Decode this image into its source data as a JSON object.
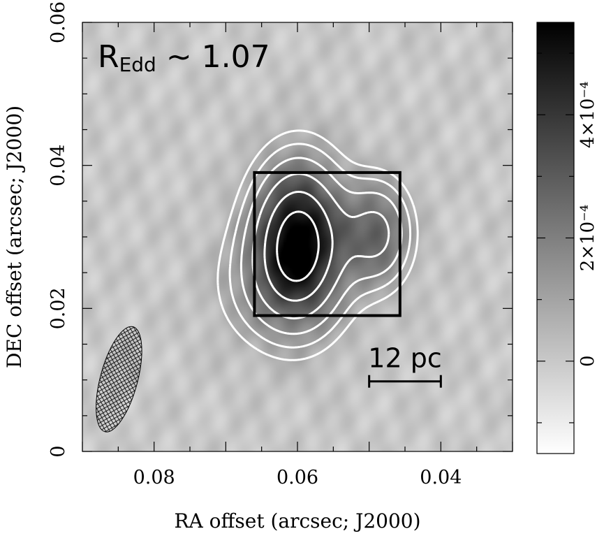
{
  "chart_data": {
    "type": "heatmap",
    "xlabel": "RA offset (arcsec; J2000)",
    "ylabel": "DEC offset (arcsec; J2000)",
    "xlim": [
      0.09,
      0.03
    ],
    "ylim": [
      0.0,
      0.06
    ],
    "x_inverted": true,
    "grid": false,
    "x_ticks": [
      {
        "value": 0.08,
        "label": "0.08"
      },
      {
        "value": 0.06,
        "label": "0.06"
      },
      {
        "value": 0.04,
        "label": "0.04"
      }
    ],
    "y_ticks": [
      {
        "value": 0.0,
        "label": "0"
      },
      {
        "value": 0.02,
        "label": "0.02"
      },
      {
        "value": 0.04,
        "label": "0.04"
      },
      {
        "value": 0.06,
        "label": "0.06"
      }
    ],
    "colormap": "gray_reversed",
    "colorbar": {
      "range": [
        -0.00015,
        0.00055
      ],
      "ticks": [
        {
          "value": 0.0,
          "label": "0"
        },
        {
          "value": 0.0002,
          "label": "2×10⁻⁴"
        },
        {
          "value": 0.0004,
          "label": "4×10⁻⁴"
        }
      ]
    },
    "sources": [
      {
        "x": 0.0598,
        "y": 0.0297,
        "peak": 0.00055,
        "sx": 0.0043,
        "sy": 0.0072
      },
      {
        "x": 0.0488,
        "y": 0.0305,
        "peak": 0.00027,
        "sx": 0.0032,
        "sy": 0.005
      },
      {
        "x": 0.063,
        "y": 0.023,
        "peak": 0.00012,
        "sx": 0.006,
        "sy": 0.006
      }
    ],
    "contour_color": "#ffffff",
    "box": {
      "x": [
        0.066,
        0.0457
      ],
      "y": [
        0.019,
        0.039
      ],
      "color": "#000000"
    },
    "beam": {
      "x": 0.0849,
      "y": 0.0101,
      "major": 0.0152,
      "minor": 0.0052,
      "pa_deg": 15
    },
    "annotations": {
      "redd_prefix": "R",
      "redd_sub": "Edd",
      "redd_value": " ~ 1.07",
      "scale_bar_label": "12 pc",
      "scale_bar_x": [
        0.05,
        0.04
      ],
      "scale_bar_y": 0.0098
    }
  }
}
